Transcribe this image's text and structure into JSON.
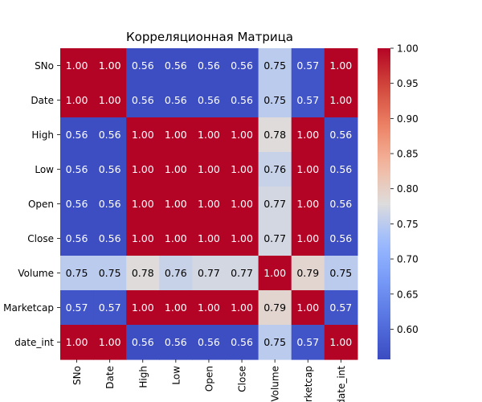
{
  "chart_data": {
    "type": "heatmap",
    "title": "Корреляционная Матрица",
    "xlabel": "",
    "ylabel": "",
    "x_labels": [
      "SNo",
      "Date",
      "High",
      "Low",
      "Open",
      "Close",
      "Volume",
      "Marketcap",
      "date_int"
    ],
    "y_labels": [
      "SNo",
      "Date",
      "High",
      "Low",
      "Open",
      "Close",
      "Volume",
      "Marketcap",
      "date_int"
    ],
    "values": [
      [
        1.0,
        1.0,
        0.56,
        0.56,
        0.56,
        0.56,
        0.75,
        0.57,
        1.0
      ],
      [
        1.0,
        1.0,
        0.56,
        0.56,
        0.56,
        0.56,
        0.75,
        0.57,
        1.0
      ],
      [
        0.56,
        0.56,
        1.0,
        1.0,
        1.0,
        1.0,
        0.78,
        1.0,
        0.56
      ],
      [
        0.56,
        0.56,
        1.0,
        1.0,
        1.0,
        1.0,
        0.76,
        1.0,
        0.56
      ],
      [
        0.56,
        0.56,
        1.0,
        1.0,
        1.0,
        1.0,
        0.77,
        1.0,
        0.56
      ],
      [
        0.56,
        0.56,
        1.0,
        1.0,
        1.0,
        1.0,
        0.77,
        1.0,
        0.56
      ],
      [
        0.75,
        0.75,
        0.78,
        0.76,
        0.77,
        0.77,
        1.0,
        0.79,
        0.75
      ],
      [
        0.57,
        0.57,
        1.0,
        1.0,
        1.0,
        1.0,
        0.79,
        1.0,
        0.57
      ],
      [
        1.0,
        1.0,
        0.56,
        0.56,
        0.56,
        0.56,
        0.75,
        0.57,
        1.0
      ]
    ],
    "value_format": "2 decimals",
    "colormap": "coolwarm",
    "color_range": [
      0.557,
      1.0
    ],
    "colorbar_ticks": [
      "0.60",
      "0.65",
      "0.70",
      "0.75",
      "0.80",
      "0.85",
      "0.90",
      "0.95",
      "1.00"
    ],
    "colorbar_placement": "right",
    "grid": false,
    "annotated": true,
    "colors": {
      "high": "#b40426",
      "mid": "#dddcdc",
      "low": "#3b4cc0",
      "annotation_on_dark": "#ffffff",
      "annotation_on_light": "#000000"
    }
  }
}
